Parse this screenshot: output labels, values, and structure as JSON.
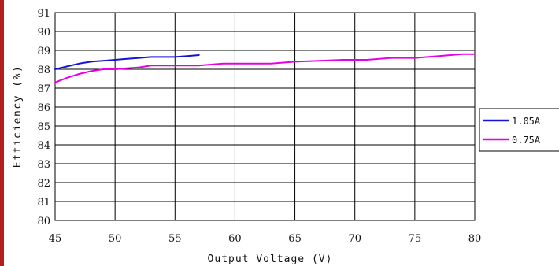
{
  "colors": {
    "side_bar": "#b31e1e",
    "grid": "#000000",
    "series_1": "#1414d8",
    "series_2": "#e600e6"
  },
  "chart_data": {
    "type": "line",
    "title": "",
    "xlabel": "Output Voltage (V)",
    "ylabel": "Efficiency (%)",
    "xlim": [
      45,
      80
    ],
    "ylim": [
      80,
      91
    ],
    "x_ticks": [
      45,
      50,
      55,
      60,
      65,
      70,
      75,
      80
    ],
    "y_ticks": [
      80,
      81,
      82,
      83,
      84,
      85,
      86,
      87,
      88,
      89,
      90,
      91
    ],
    "grid": true,
    "legend_position": "right",
    "series": [
      {
        "name": "1.05A",
        "color": "#1414d8",
        "x": [
          45,
          46,
          47,
          48,
          49,
          50,
          51,
          52,
          53,
          54,
          55,
          56,
          57
        ],
        "y": [
          88.0,
          88.15,
          88.3,
          88.4,
          88.45,
          88.5,
          88.55,
          88.6,
          88.65,
          88.65,
          88.65,
          88.7,
          88.75
        ]
      },
      {
        "name": "0.75A",
        "color": "#e600e6",
        "x": [
          45,
          46,
          47,
          48,
          49,
          50,
          51,
          52,
          53,
          55,
          57,
          59,
          61,
          63,
          65,
          67,
          69,
          71,
          73,
          75,
          77,
          78,
          79,
          80
        ],
        "y": [
          87.3,
          87.55,
          87.75,
          87.9,
          88.0,
          88.0,
          88.05,
          88.1,
          88.2,
          88.2,
          88.2,
          88.3,
          88.3,
          88.3,
          88.4,
          88.45,
          88.5,
          88.5,
          88.6,
          88.6,
          88.7,
          88.75,
          88.8,
          88.8
        ]
      }
    ]
  }
}
